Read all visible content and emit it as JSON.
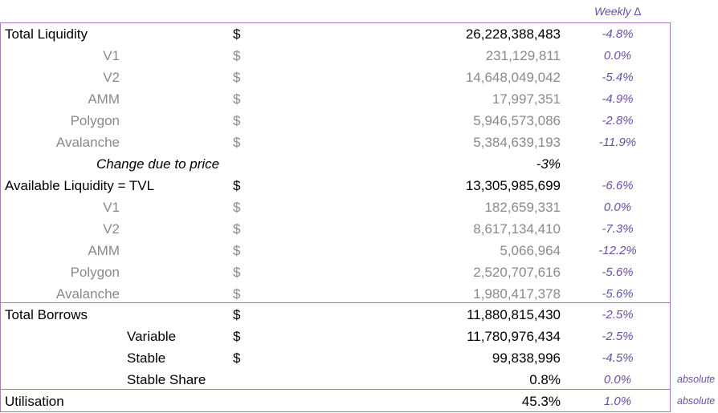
{
  "header": {
    "weekly_delta": "Weekly ∆"
  },
  "rows": [
    {
      "label": "Total Liquidity",
      "dollar": "$",
      "value": "26,228,388,483",
      "pct": "-4.8%"
    },
    {
      "label": "V1",
      "dollar": "$",
      "value": "231,129,811",
      "pct": "0.0%"
    },
    {
      "label": "V2",
      "dollar": "$",
      "value": "14,648,049,042",
      "pct": "-5.4%"
    },
    {
      "label": "AMM",
      "dollar": "$",
      "value": "17,997,351",
      "pct": "-4.9%"
    },
    {
      "label": "Polygon",
      "dollar": "$",
      "value": "5,946,573,086",
      "pct": "-2.8%"
    },
    {
      "label": "Avalanche",
      "dollar": "$",
      "value": "5,384,639,193",
      "pct": "-11.9%"
    },
    {
      "label": "Change due to price",
      "value": "-3%"
    },
    {
      "label": "Available Liquidity  = TVL",
      "dollar": "$",
      "value": "13,305,985,699",
      "pct": "-6.6%"
    },
    {
      "label": "V1",
      "dollar": "$",
      "value": "182,659,331",
      "pct": "0.0%"
    },
    {
      "label": "V2",
      "dollar": "$",
      "value": "8,617,134,410",
      "pct": "-7.3%"
    },
    {
      "label": "AMM",
      "dollar": "$",
      "value": "5,066,964",
      "pct": "-12.2%"
    },
    {
      "label": "Polygon",
      "dollar": "$",
      "value": "2,520,707,616",
      "pct": "-5.6%"
    },
    {
      "label": "Avalanche",
      "dollar": "$",
      "value": "1,980,417,378",
      "pct": "-5.6%"
    },
    {
      "label": "Total Borrows",
      "dollar": "$",
      "value": "11,880,815,430",
      "pct": "-2.5%"
    },
    {
      "label": "Variable",
      "dollar": "$",
      "value": "11,780,976,434",
      "pct": "-2.5%"
    },
    {
      "label": "Stable",
      "dollar": "$",
      "value": "99,838,996",
      "pct": "-4.5%"
    },
    {
      "label": "Stable Share",
      "value": "0.8%",
      "pct": "0.0%",
      "note": "absolute"
    },
    {
      "label": "Utilisation",
      "value": "45.3%",
      "pct": "1.0%",
      "note": "absolute"
    }
  ],
  "colors": {
    "accent": "#6b4fa0",
    "border": "#a97bb8",
    "muted": "#8a8a8a"
  }
}
